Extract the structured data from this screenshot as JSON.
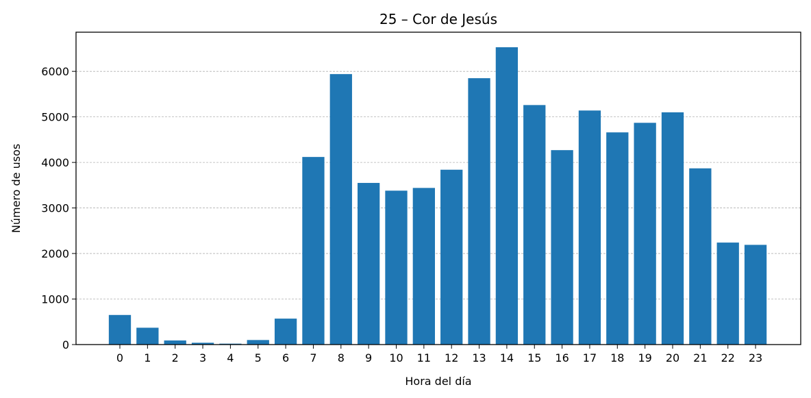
{
  "chart_data": {
    "type": "bar",
    "title": "25 – Cor de Jesús",
    "xlabel": "Hora del día",
    "ylabel": "Número de usos",
    "categories": [
      "0",
      "1",
      "2",
      "3",
      "4",
      "5",
      "6",
      "7",
      "8",
      "9",
      "10",
      "11",
      "12",
      "13",
      "14",
      "15",
      "16",
      "17",
      "18",
      "19",
      "20",
      "21",
      "22",
      "23"
    ],
    "values": [
      650,
      370,
      90,
      40,
      20,
      100,
      570,
      4120,
      5940,
      3550,
      3380,
      3440,
      3840,
      5850,
      6530,
      5260,
      4270,
      5140,
      4660,
      4870,
      5100,
      3870,
      2240,
      2190
    ],
    "ylim": [
      0,
      6860
    ],
    "yticks": [
      0,
      1000,
      2000,
      3000,
      4000,
      5000,
      6000
    ],
    "grid": "y-dashed",
    "bar_color": "#1f77b4",
    "legend": "none"
  }
}
